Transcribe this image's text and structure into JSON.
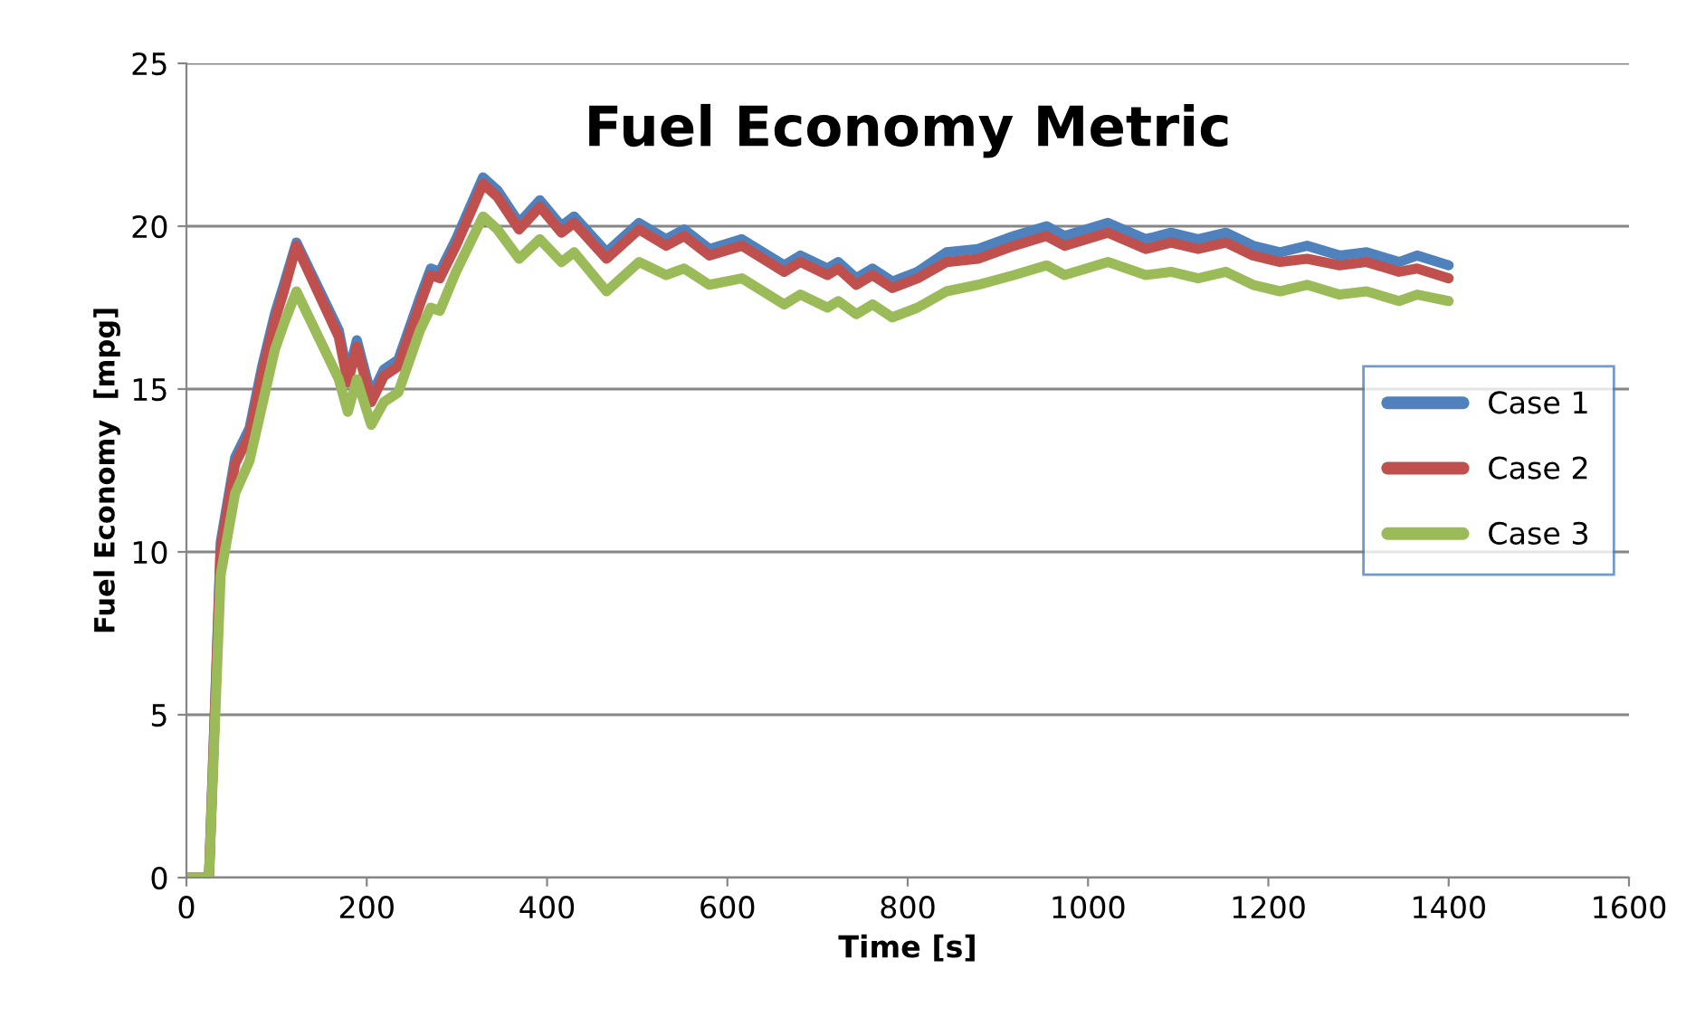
{
  "chart_data": {
    "type": "line",
    "title": "Fuel Economy Metric",
    "xlabel": "Time [s]",
    "ylabel": "Fuel Economy  [mpg]",
    "x": [
      0,
      25,
      38,
      54,
      70,
      84,
      98,
      108,
      122,
      169,
      179,
      189,
      205,
      219,
      235,
      259,
      271,
      281,
      299,
      329,
      345,
      369,
      392,
      416,
      430,
      466,
      502,
      532,
      552,
      580,
      616,
      663,
      681,
      711,
      723,
      743,
      761,
      783,
      811,
      843,
      878,
      918,
      954,
      974,
      1022,
      1064,
      1092,
      1122,
      1153,
      1183,
      1213,
      1243,
      1279,
      1309,
      1345,
      1365,
      1400
    ],
    "series": [
      {
        "name": "Case 1",
        "color": "#4f81bd",
        "values": [
          0,
          0,
          10.3,
          12.9,
          13.8,
          15.7,
          17.3,
          18.2,
          19.5,
          16.8,
          15.4,
          16.5,
          14.8,
          15.6,
          15.9,
          17.8,
          18.7,
          18.6,
          19.6,
          21.5,
          21.1,
          20.1,
          20.8,
          20.0,
          20.3,
          19.2,
          20.1,
          19.6,
          19.9,
          19.3,
          19.6,
          18.8,
          19.1,
          18.7,
          18.9,
          18.4,
          18.7,
          18.3,
          18.6,
          19.2,
          19.3,
          19.7,
          20.0,
          19.7,
          20.1,
          19.6,
          19.8,
          19.6,
          19.8,
          19.4,
          19.2,
          19.4,
          19.1,
          19.2,
          18.9,
          19.1,
          18.8
        ]
      },
      {
        "name": "Case 2",
        "color": "#c0504d",
        "values": [
          0,
          0,
          10.1,
          12.7,
          13.6,
          15.5,
          17.1,
          18.0,
          19.4,
          16.6,
          15.2,
          16.3,
          14.6,
          15.4,
          15.7,
          17.6,
          18.5,
          18.4,
          19.4,
          21.3,
          20.9,
          19.9,
          20.6,
          19.8,
          20.1,
          19.0,
          19.9,
          19.4,
          19.7,
          19.1,
          19.4,
          18.6,
          18.9,
          18.5,
          18.7,
          18.2,
          18.5,
          18.1,
          18.4,
          18.9,
          19.0,
          19.4,
          19.7,
          19.4,
          19.8,
          19.3,
          19.5,
          19.3,
          19.5,
          19.1,
          18.9,
          19.0,
          18.8,
          18.9,
          18.6,
          18.7,
          18.4
        ]
      },
      {
        "name": "Case 3",
        "color": "#9bbb59",
        "values": [
          0,
          0,
          9.3,
          11.8,
          12.8,
          14.5,
          16.2,
          17.0,
          18.0,
          15.3,
          14.3,
          15.3,
          13.9,
          14.6,
          14.9,
          16.8,
          17.5,
          17.4,
          18.6,
          20.3,
          19.9,
          19.0,
          19.6,
          18.9,
          19.2,
          18.0,
          18.9,
          18.5,
          18.7,
          18.2,
          18.4,
          17.6,
          17.9,
          17.5,
          17.7,
          17.3,
          17.6,
          17.2,
          17.5,
          18.0,
          18.2,
          18.5,
          18.8,
          18.5,
          18.9,
          18.5,
          18.6,
          18.4,
          18.6,
          18.2,
          18.0,
          18.2,
          17.9,
          18.0,
          17.7,
          17.9,
          17.7
        ]
      }
    ],
    "xlim": [
      0,
      1600
    ],
    "xticks": [
      0,
      200,
      400,
      600,
      800,
      1000,
      1200,
      1400,
      1600
    ],
    "ylim": [
      0,
      25
    ],
    "yticks": [
      0,
      5,
      10,
      15,
      20,
      25
    ],
    "grid": "y",
    "legend": "center right",
    "marker": "none",
    "line_style": "solid"
  }
}
